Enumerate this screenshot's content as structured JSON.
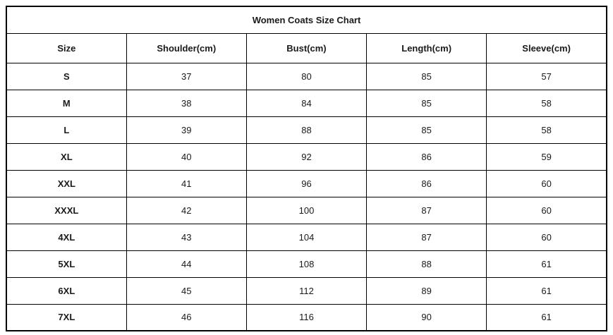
{
  "title": "Women Coats Size Chart",
  "columns": [
    "Size",
    "Shoulder(cm)",
    "Bust(cm)",
    "Length(cm)",
    "Sleeve(cm)"
  ],
  "rows": [
    [
      "S",
      "37",
      "80",
      "85",
      "57"
    ],
    [
      "M",
      "38",
      "84",
      "85",
      "58"
    ],
    [
      "L",
      "39",
      "88",
      "85",
      "58"
    ],
    [
      "XL",
      "40",
      "92",
      "86",
      "59"
    ],
    [
      "XXL",
      "41",
      "96",
      "86",
      "60"
    ],
    [
      "XXXL",
      "42",
      "100",
      "87",
      "60"
    ],
    [
      "4XL",
      "43",
      "104",
      "87",
      "60"
    ],
    [
      "5XL",
      "44",
      "108",
      "88",
      "61"
    ],
    [
      "6XL",
      "45",
      "112",
      "89",
      "61"
    ],
    [
      "7XL",
      "46",
      "116",
      "90",
      "61"
    ]
  ],
  "colors": {
    "border": "#000000",
    "text": "#1a1a1a",
    "background": "#ffffff"
  }
}
